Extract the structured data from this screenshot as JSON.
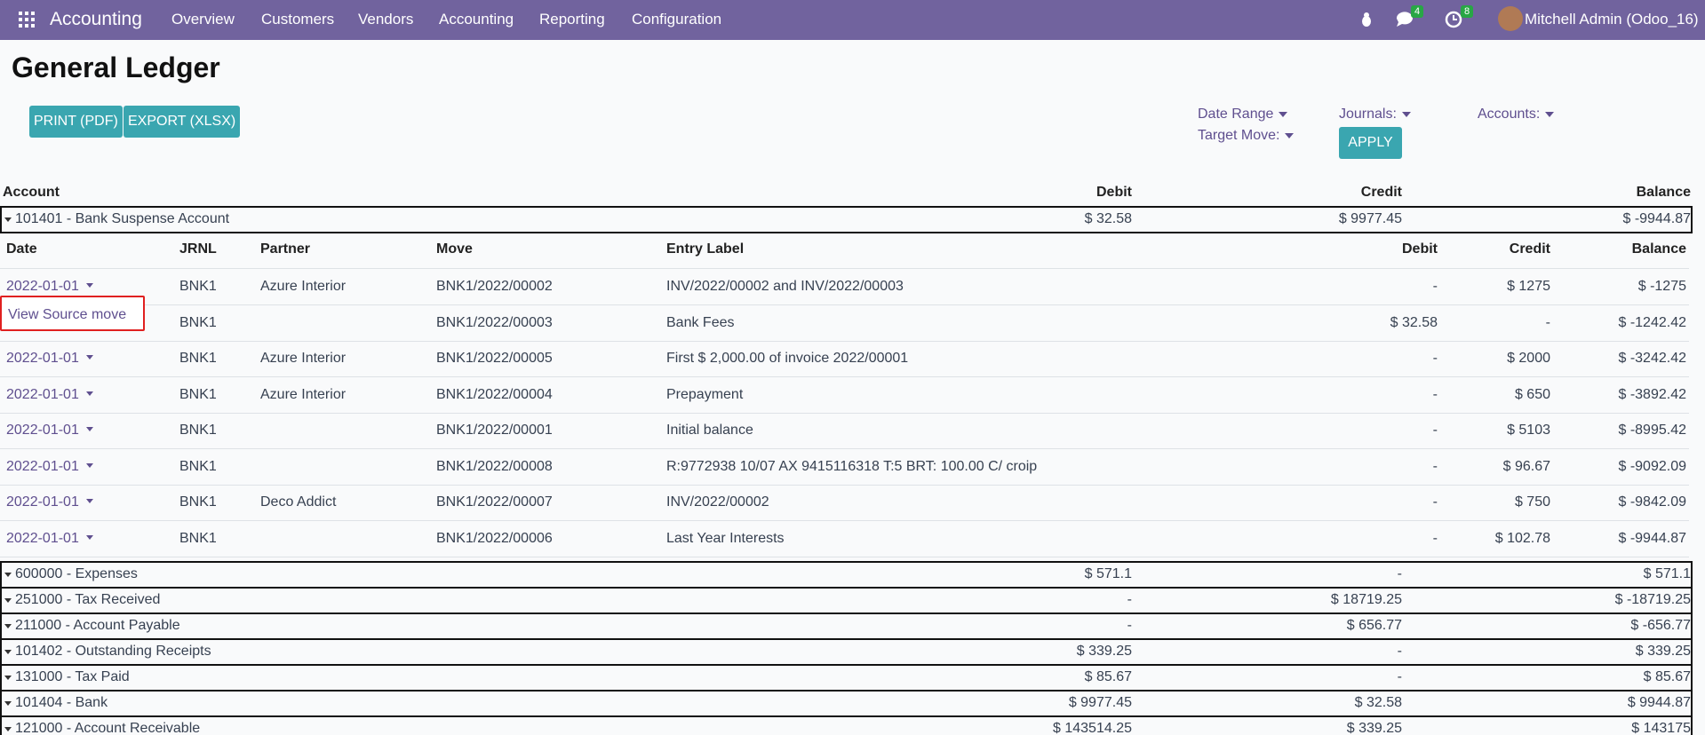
{
  "navbar": {
    "app": "Accounting",
    "menu": [
      "Overview",
      "Customers",
      "Vendors",
      "Accounting",
      "Reporting",
      "Configuration"
    ],
    "messages_badge": "4",
    "activities_badge": "8",
    "user": "Mitchell Admin (Odoo_16)"
  },
  "header": {
    "title": "General Ledger",
    "buttons": [
      "PRINT (PDF)",
      "EXPORT (XLSX)"
    ],
    "filters": {
      "date_range": "Date Range",
      "target_move": "Target Move:",
      "journals": "Journals:",
      "accounts": "Accounts:",
      "apply": "APPLY"
    }
  },
  "table": {
    "columns": [
      "Account",
      "Debit",
      "Credit",
      "Balance"
    ],
    "accounts": [
      {
        "name": "101401 - Bank Suspense Account",
        "debit": "$ 32.58",
        "credit": "$ 9977.45",
        "balance": "$ -9944.87"
      },
      {
        "name": "600000 - Expenses",
        "debit": "$ 571.1",
        "credit": "-",
        "balance": "$ 571.1"
      },
      {
        "name": "251000 - Tax Received",
        "debit": "-",
        "credit": "$ 18719.25",
        "balance": "$ -18719.25"
      },
      {
        "name": "211000 - Account Payable",
        "debit": "-",
        "credit": "$ 656.77",
        "balance": "$ -656.77"
      },
      {
        "name": "101402 - Outstanding Receipts",
        "debit": "$ 339.25",
        "credit": "-",
        "balance": "$ 339.25"
      },
      {
        "name": "131000 - Tax Paid",
        "debit": "$ 85.67",
        "credit": "-",
        "balance": "$ 85.67"
      },
      {
        "name": "101404 - Bank",
        "debit": "$ 9977.45",
        "credit": "$ 32.58",
        "balance": "$ 9944.87"
      },
      {
        "name": "121000 - Account Receivable",
        "debit": "$ 143514.25",
        "credit": "$ 339.25",
        "balance": "$ 143175"
      }
    ],
    "detail_columns": [
      "Date",
      "JRNL",
      "Partner",
      "Move",
      "Entry Label",
      "Debit",
      "Credit",
      "Balance"
    ],
    "lines": [
      [
        "2022-01-01",
        "BNK1",
        "Azure Interior",
        "BNK1/2022/00002",
        "INV/2022/00002 and INV/2022/00003",
        "-",
        "$ 1275",
        "$ -1275"
      ],
      [
        null,
        "BNK1",
        null,
        "BNK1/2022/00003",
        "Bank Fees",
        "$ 32.58",
        "-",
        "$ -1242.42"
      ],
      [
        "2022-01-01",
        "BNK1",
        "Azure Interior",
        "BNK1/2022/00005",
        "First $ 2,000.00 of invoice 2022/00001",
        "-",
        "$ 2000",
        "$ -3242.42"
      ],
      [
        "2022-01-01",
        "BNK1",
        "Azure Interior",
        "BNK1/2022/00004",
        "Prepayment",
        "-",
        "$ 650",
        "$ -3892.42"
      ],
      [
        "2022-01-01",
        "BNK1",
        null,
        "BNK1/2022/00001",
        "Initial balance",
        "-",
        "$ 5103",
        "$ -8995.42"
      ],
      [
        "2022-01-01",
        "BNK1",
        null,
        "BNK1/2022/00008",
        "R:9772938 10/07 AX 9415116318 T:5 BRT: 100.00 C/ croip",
        "-",
        "$ 96.67",
        "$ -9092.09"
      ],
      [
        "2022-01-01",
        "BNK1",
        "Deco Addict",
        "BNK1/2022/00007",
        "INV/2022/00002",
        "-",
        "$ 750",
        "$ -9842.09"
      ],
      [
        "2022-01-01",
        "BNK1",
        null,
        "BNK1/2022/00006",
        "Last Year Interests",
        "-",
        "$ 102.78",
        "$ -9944.87"
      ]
    ]
  },
  "popup": "View Source move"
}
